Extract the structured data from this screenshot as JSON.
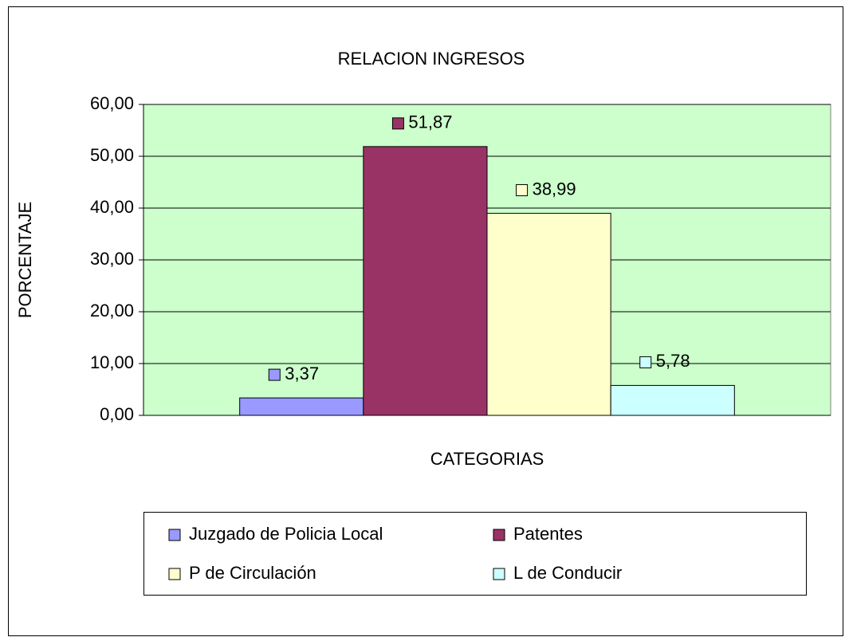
{
  "chart_data": {
    "type": "bar",
    "title": "RELACION INGRESOS",
    "xlabel": "CATEGORIAS",
    "ylabel": "PORCENTAJE",
    "categories": [
      null
    ],
    "series": [
      {
        "name": "Juzgado de Policia Local",
        "color": "#9999ff",
        "values": [
          3.37
        ],
        "value_labels": [
          "3,37"
        ]
      },
      {
        "name": "Patentes",
        "color": "#993366",
        "values": [
          51.87
        ],
        "value_labels": [
          "51,87"
        ]
      },
      {
        "name": "P de Circulación",
        "color": "#ffffcc",
        "values": [
          38.99
        ],
        "value_labels": [
          "38,99"
        ]
      },
      {
        "name": "L de Conducir",
        "color": "#ccffff",
        "values": [
          5.78
        ],
        "value_labels": [
          "5,78"
        ]
      }
    ],
    "ylim": [
      0,
      60
    ],
    "yticks": [
      {
        "value": 0,
        "label": "0,00"
      },
      {
        "value": 10,
        "label": "10,00"
      },
      {
        "value": 20,
        "label": "20,00"
      },
      {
        "value": 30,
        "label": "30,00"
      },
      {
        "value": 40,
        "label": "40,00"
      },
      {
        "value": 50,
        "label": "50,00"
      },
      {
        "value": 60,
        "label": "60,00"
      }
    ],
    "grid": true,
    "plot_background": "#ccffcc",
    "legend": "bottom"
  }
}
